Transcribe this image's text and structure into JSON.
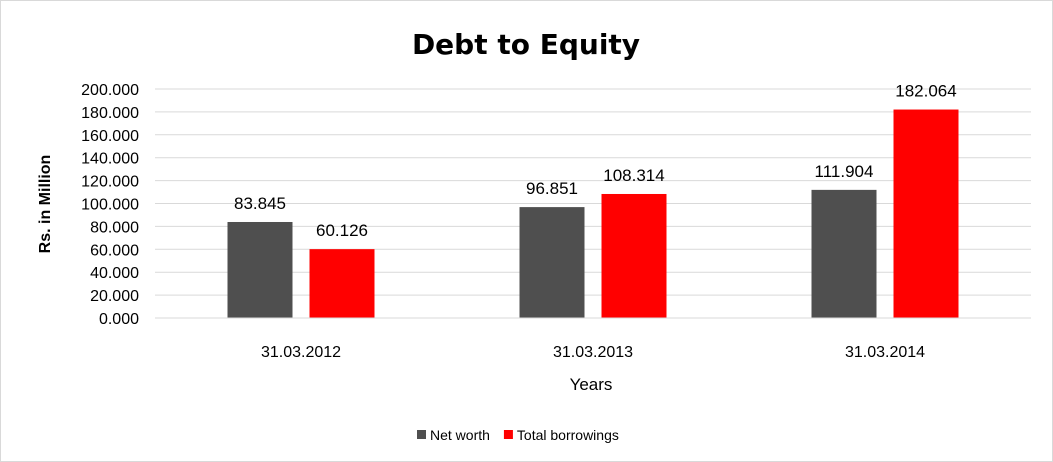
{
  "chart_data": {
    "type": "bar",
    "title": "Debt to Equity",
    "xlabel": "Years",
    "ylabel": "Rs. in Million",
    "categories": [
      "31.03.2012",
      "31.03.2013",
      "31.03.2014"
    ],
    "series": [
      {
        "name": "Net worth",
        "values": [
          83.845,
          96.851,
          111.904
        ],
        "color": "#4f4f4f",
        "labels": [
          "83.845",
          "96.851",
          "111.904"
        ]
      },
      {
        "name": "Total borrowings",
        "values": [
          60.126,
          108.314,
          182.064
        ],
        "color": "#ff0000",
        "labels": [
          "60.126",
          "108.314",
          "182.064"
        ]
      }
    ],
    "ylim": [
      0,
      200
    ],
    "yticks": [
      0,
      20,
      40,
      60,
      80,
      100,
      120,
      140,
      160,
      180,
      200
    ],
    "ytick_labels": [
      "0.000",
      "20.000",
      "40.000",
      "60.000",
      "80.000",
      "100.000",
      "120.000",
      "140.000",
      "160.000",
      "180.000",
      "200.000"
    ],
    "grid": true,
    "gridline_color": "#d9d9d9",
    "legend_position": "bottom"
  }
}
